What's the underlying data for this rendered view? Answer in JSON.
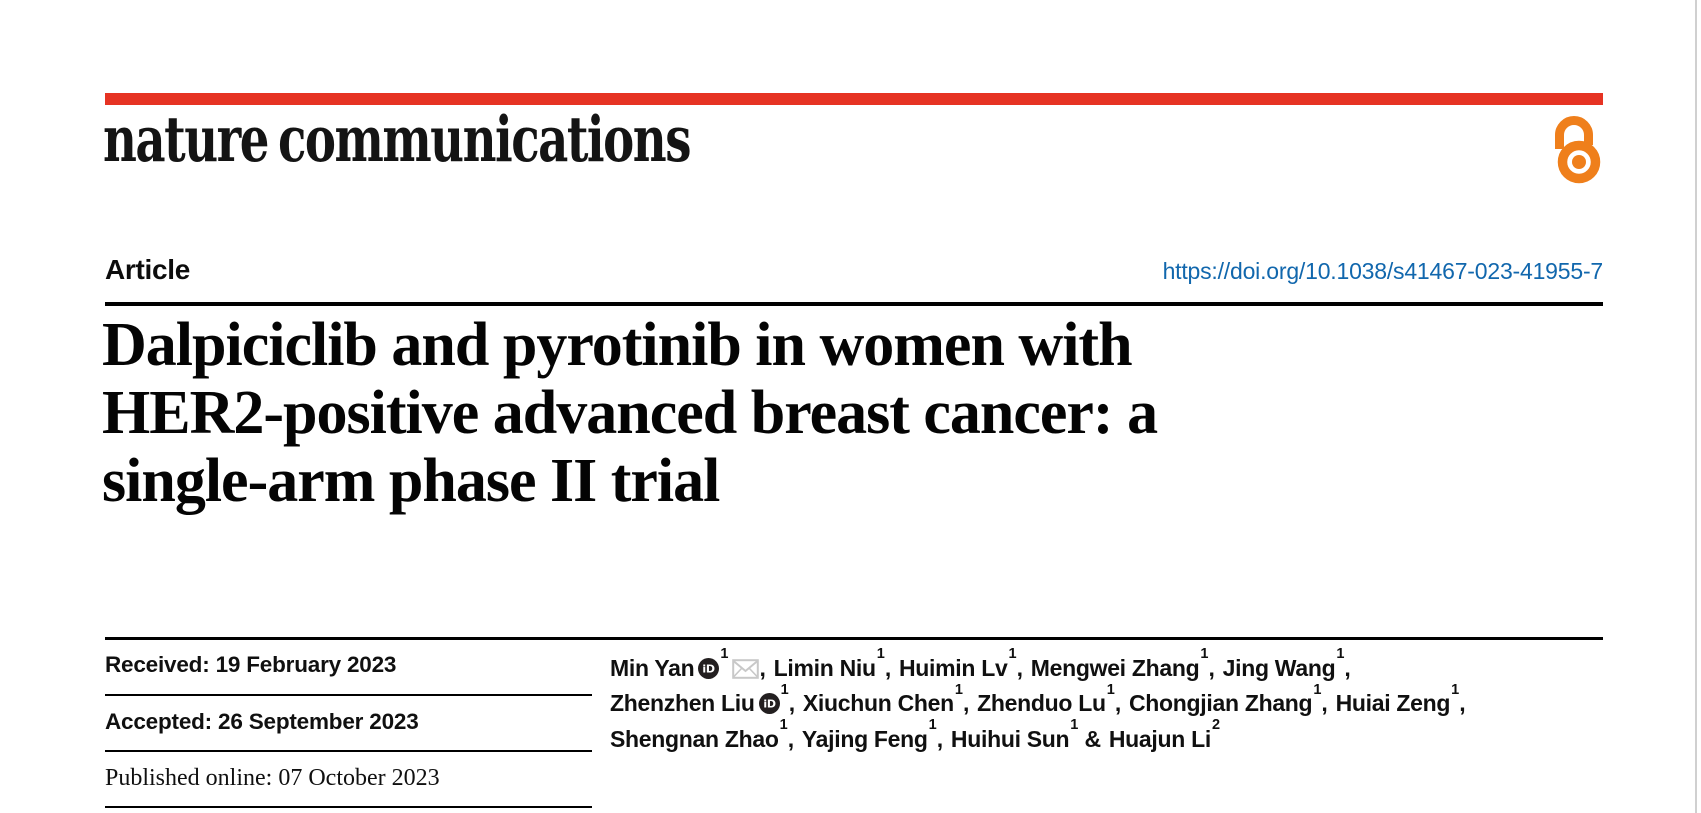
{
  "theme": {
    "accent_red": "#e63323",
    "open_access_orange": "#ef7f1b",
    "link_blue": "#1167ad",
    "rule_black": "#000000",
    "page_edge_gray": "#d0d0d0",
    "envelope_gray": "#c8c8c8",
    "orcid_black": "#231f20"
  },
  "brand": {
    "logo_text": "nature communications",
    "open_access_icon": "open-padlock"
  },
  "header_row": {
    "article_label": "Article",
    "doi_link": "https://doi.org/10.1038/s41467-023-41955-7"
  },
  "title": {
    "lines": [
      "Dalpiciclib and pyrotinib in women with",
      "HER2-positive advanced breast cancer: a",
      "single-arm phase II trial"
    ]
  },
  "dates": [
    {
      "label": "Received:",
      "value": "19 February 2023"
    },
    {
      "label": "Accepted:",
      "value": "26 September 2023"
    },
    {
      "label": "Published online:",
      "value": "07 October 2023"
    }
  ],
  "authors": {
    "lines": [
      [
        {
          "name": "Min Yan",
          "orcid": true,
          "aff": "1",
          "email": true,
          "trail": ", "
        },
        {
          "name": "Limin Niu",
          "aff": "1",
          "trail": ", "
        },
        {
          "name": "Huimin Lv",
          "aff": "1",
          "trail": ", "
        },
        {
          "name": "Mengwei Zhang",
          "aff": "1",
          "trail": ", "
        },
        {
          "name": "Jing Wang",
          "aff": "1",
          "trail": ","
        }
      ],
      [
        {
          "name": "Zhenzhen Liu",
          "orcid": true,
          "aff": "1",
          "trail": ", "
        },
        {
          "name": "Xiuchun Chen",
          "aff": "1",
          "trail": ", "
        },
        {
          "name": "Zhenduo Lu",
          "aff": "1",
          "trail": ", "
        },
        {
          "name": "Chongjian Zhang",
          "aff": "1",
          "trail": ", "
        },
        {
          "name": "Huiai Zeng",
          "aff": "1",
          "trail": ","
        }
      ],
      [
        {
          "name": "Shengnan Zhao",
          "aff": "1",
          "trail": ", "
        },
        {
          "name": "Yajing Feng",
          "aff": "1",
          "trail": ", "
        },
        {
          "name": "Huihui Sun",
          "aff": "1",
          "trail": " & "
        },
        {
          "name": "Huajun Li",
          "aff": "2",
          "trail": ""
        }
      ]
    ]
  }
}
